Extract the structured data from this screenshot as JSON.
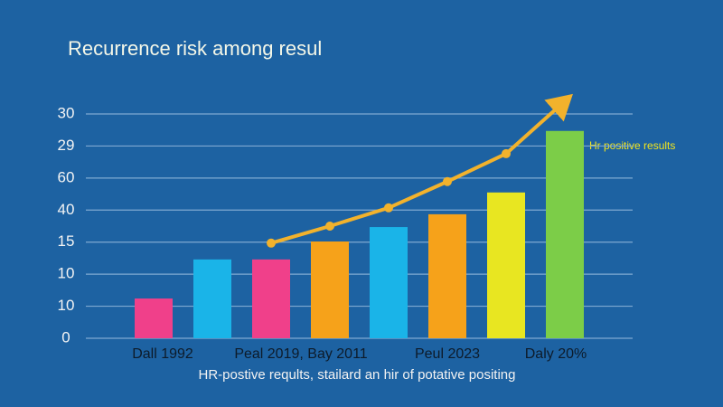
{
  "chart_data": {
    "type": "bar",
    "title": "Recurrence risk among resul",
    "x_label": "HR-postive reqults, stailard an hir of potative positing",
    "annotation": "Hr positive results",
    "categories": [
      "Dall 1992",
      null,
      "Peal 2019, Bay 2011",
      null,
      null,
      "Peul 2023",
      null,
      "Daly 20%"
    ],
    "series": [
      {
        "type": "bar",
        "values": [
          1.24,
          2.46,
          2.46,
          3.02,
          3.47,
          3.87,
          4.55,
          6.47
        ],
        "colors": [
          "#f0408a",
          "#1ab4e8",
          "#f0408a",
          "#f6a21a",
          "#1ab4e8",
          "#f6a21a",
          "#e8e621",
          "#7ccd48"
        ]
      },
      {
        "type": "line",
        "color": "#f2b22c",
        "values": [
          null,
          null,
          2.97,
          3.5,
          4.07,
          4.89,
          5.76,
          7.4
        ]
      }
    ],
    "ylim": [
      0,
      7
    ],
    "yticks": [
      {
        "value": 0,
        "label": "0"
      },
      {
        "value": 1,
        "label": "10"
      },
      {
        "value": 2,
        "label": "10"
      },
      {
        "value": 3,
        "label": "15"
      },
      {
        "value": 4,
        "label": "40"
      },
      {
        "value": 5,
        "label": "60"
      },
      {
        "value": 6,
        "label": "29"
      },
      {
        "value": 7,
        "label": "30"
      }
    ],
    "grid": true
  }
}
